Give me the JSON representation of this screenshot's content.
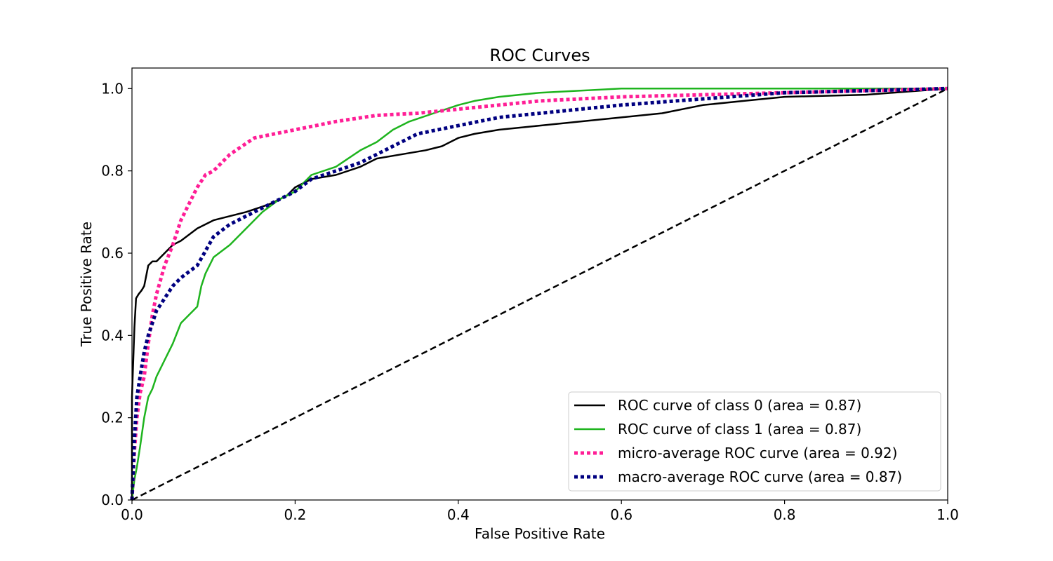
{
  "chart_data": {
    "type": "line",
    "title": "ROC Curves",
    "xlabel": "False Positive Rate",
    "ylabel": "True Positive Rate",
    "xlim": [
      0.0,
      1.0
    ],
    "ylim": [
      0.0,
      1.05
    ],
    "xticks": [
      "0.0",
      "0.2",
      "0.4",
      "0.6",
      "0.8",
      "1.0"
    ],
    "yticks": [
      "0.0",
      "0.2",
      "0.4",
      "0.6",
      "0.8",
      "1.0"
    ],
    "grid": false,
    "legend_position": "lower-right",
    "series": [
      {
        "name": "ROC curve of class 0 (area = 0.87)",
        "color": "#000000",
        "style": "solid",
        "x": [
          0,
          0,
          0.003,
          0.005,
          0.008,
          0.012,
          0.015,
          0.02,
          0.025,
          0.03,
          0.04,
          0.05,
          0.06,
          0.08,
          0.1,
          0.12,
          0.14,
          0.17,
          0.19,
          0.2,
          0.22,
          0.25,
          0.28,
          0.3,
          0.33,
          0.36,
          0.38,
          0.4,
          0.42,
          0.45,
          0.5,
          0.55,
          0.6,
          0.65,
          0.7,
          0.75,
          0.8,
          0.9,
          1.0
        ],
        "y": [
          0,
          0.25,
          0.42,
          0.49,
          0.5,
          0.51,
          0.52,
          0.57,
          0.58,
          0.58,
          0.6,
          0.62,
          0.63,
          0.66,
          0.68,
          0.69,
          0.7,
          0.72,
          0.74,
          0.76,
          0.78,
          0.79,
          0.81,
          0.83,
          0.84,
          0.85,
          0.86,
          0.88,
          0.89,
          0.9,
          0.91,
          0.92,
          0.93,
          0.94,
          0.96,
          0.97,
          0.98,
          0.985,
          1.0
        ]
      },
      {
        "name": "ROC curve of class 1 (area = 0.87)",
        "color": "#1eb41e",
        "style": "solid",
        "x": [
          0,
          0.003,
          0.006,
          0.01,
          0.015,
          0.02,
          0.025,
          0.03,
          0.035,
          0.04,
          0.05,
          0.06,
          0.07,
          0.08,
          0.085,
          0.09,
          0.1,
          0.12,
          0.14,
          0.16,
          0.18,
          0.2,
          0.21,
          0.22,
          0.25,
          0.28,
          0.3,
          0.32,
          0.34,
          0.37,
          0.4,
          0.42,
          0.45,
          0.5,
          0.55,
          0.6,
          0.7,
          0.8,
          1.0
        ],
        "y": [
          0,
          0.05,
          0.08,
          0.13,
          0.2,
          0.25,
          0.27,
          0.3,
          0.32,
          0.34,
          0.38,
          0.43,
          0.45,
          0.47,
          0.52,
          0.55,
          0.59,
          0.62,
          0.66,
          0.7,
          0.73,
          0.75,
          0.77,
          0.79,
          0.81,
          0.85,
          0.87,
          0.9,
          0.92,
          0.94,
          0.96,
          0.97,
          0.98,
          0.99,
          0.995,
          1.0,
          1.0,
          1.0,
          1.0
        ]
      },
      {
        "name": "micro-average ROC curve (area = 0.92)",
        "color": "#ff1e96",
        "style": "dotted",
        "x": [
          0,
          0.003,
          0.006,
          0.01,
          0.015,
          0.02,
          0.025,
          0.03,
          0.04,
          0.05,
          0.06,
          0.07,
          0.08,
          0.09,
          0.1,
          0.12,
          0.15,
          0.2,
          0.25,
          0.3,
          0.35,
          0.4,
          0.5,
          0.6,
          0.7,
          0.8,
          0.9,
          1.0
        ],
        "y": [
          0,
          0.12,
          0.2,
          0.26,
          0.3,
          0.38,
          0.45,
          0.5,
          0.57,
          0.62,
          0.68,
          0.72,
          0.76,
          0.79,
          0.8,
          0.84,
          0.88,
          0.9,
          0.92,
          0.935,
          0.94,
          0.95,
          0.97,
          0.98,
          0.985,
          0.99,
          0.995,
          1.0
        ]
      },
      {
        "name": "macro-average ROC curve (area = 0.87)",
        "color": "#000080",
        "style": "dotted",
        "x": [
          0,
          0.003,
          0.006,
          0.01,
          0.015,
          0.02,
          0.025,
          0.03,
          0.04,
          0.05,
          0.06,
          0.08,
          0.1,
          0.12,
          0.15,
          0.18,
          0.2,
          0.22,
          0.25,
          0.28,
          0.3,
          0.32,
          0.35,
          0.4,
          0.45,
          0.5,
          0.6,
          0.7,
          0.8,
          0.9,
          1.0
        ],
        "y": [
          0,
          0.15,
          0.25,
          0.3,
          0.36,
          0.4,
          0.43,
          0.46,
          0.49,
          0.52,
          0.54,
          0.57,
          0.64,
          0.67,
          0.7,
          0.73,
          0.75,
          0.78,
          0.8,
          0.82,
          0.84,
          0.86,
          0.89,
          0.91,
          0.93,
          0.94,
          0.96,
          0.975,
          0.99,
          0.995,
          1.0
        ]
      },
      {
        "name": "",
        "color": "#000000",
        "style": "dashed",
        "x": [
          0,
          1
        ],
        "y": [
          0,
          1
        ]
      }
    ]
  }
}
